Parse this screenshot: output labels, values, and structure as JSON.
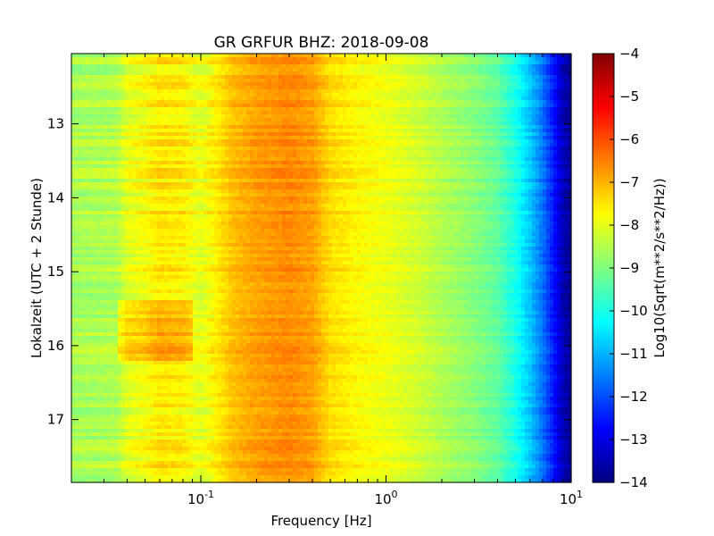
{
  "chart_data": {
    "type": "heatmap",
    "title": "GR GRFUR BHZ: 2018-09-08",
    "xlabel": "Frequency [Hz]",
    "ylabel": "Lokalzeit (UTC + 2 Stunde)",
    "x_scale": "log",
    "xlim": [
      0.02,
      10
    ],
    "x_ticks": [
      0.1,
      1,
      10
    ],
    "x_tick_labels": [
      {
        "base": "10",
        "exp": "-1"
      },
      {
        "base": "10",
        "exp": "0"
      },
      {
        "base": "10",
        "exp": "1"
      }
    ],
    "ylim": [
      12.05,
      17.85
    ],
    "y_inverted": true,
    "y_ticks": [
      13,
      14,
      15,
      16,
      17
    ],
    "y_tick_labels": [
      "13",
      "14",
      "15",
      "16",
      "17"
    ],
    "colorbar": {
      "label": "Log10(Sqrt(m**2/s**2/Hz))",
      "range": [
        -14,
        -4
      ],
      "ticks": [
        -4,
        -5,
        -6,
        -7,
        -8,
        -9,
        -10,
        -11,
        -12,
        -13,
        -14
      ],
      "tick_labels": [
        "−4",
        "−5",
        "−6",
        "−7",
        "−8",
        "−9",
        "−10",
        "−11",
        "−12",
        "−13",
        "−14"
      ],
      "colormap": "jet"
    },
    "frequency_profile": {
      "frequency_hz": [
        0.02,
        0.035,
        0.04,
        0.05,
        0.06,
        0.08,
        0.1,
        0.12,
        0.15,
        0.2,
        0.3,
        0.4,
        0.5,
        0.7,
        1.0,
        1.5,
        2.0,
        3.0,
        4.0,
        5.0,
        6.0,
        7.0,
        8.0,
        9.0,
        10.0
      ],
      "level_log10": [
        -8.6,
        -8.5,
        -8.0,
        -7.8,
        -7.5,
        -7.6,
        -8.0,
        -7.6,
        -7.1,
        -6.8,
        -6.6,
        -6.8,
        -7.4,
        -7.7,
        -7.9,
        -8.2,
        -8.5,
        -8.9,
        -9.3,
        -10.0,
        -10.8,
        -11.6,
        -12.5,
        -13.4,
        -13.8
      ]
    },
    "time_variation_notes": [
      {
        "from_hour": 15.4,
        "to_hour": 16.2,
        "freq_range_hz": [
          0.035,
          0.09
        ],
        "delta": 0.6
      }
    ]
  }
}
